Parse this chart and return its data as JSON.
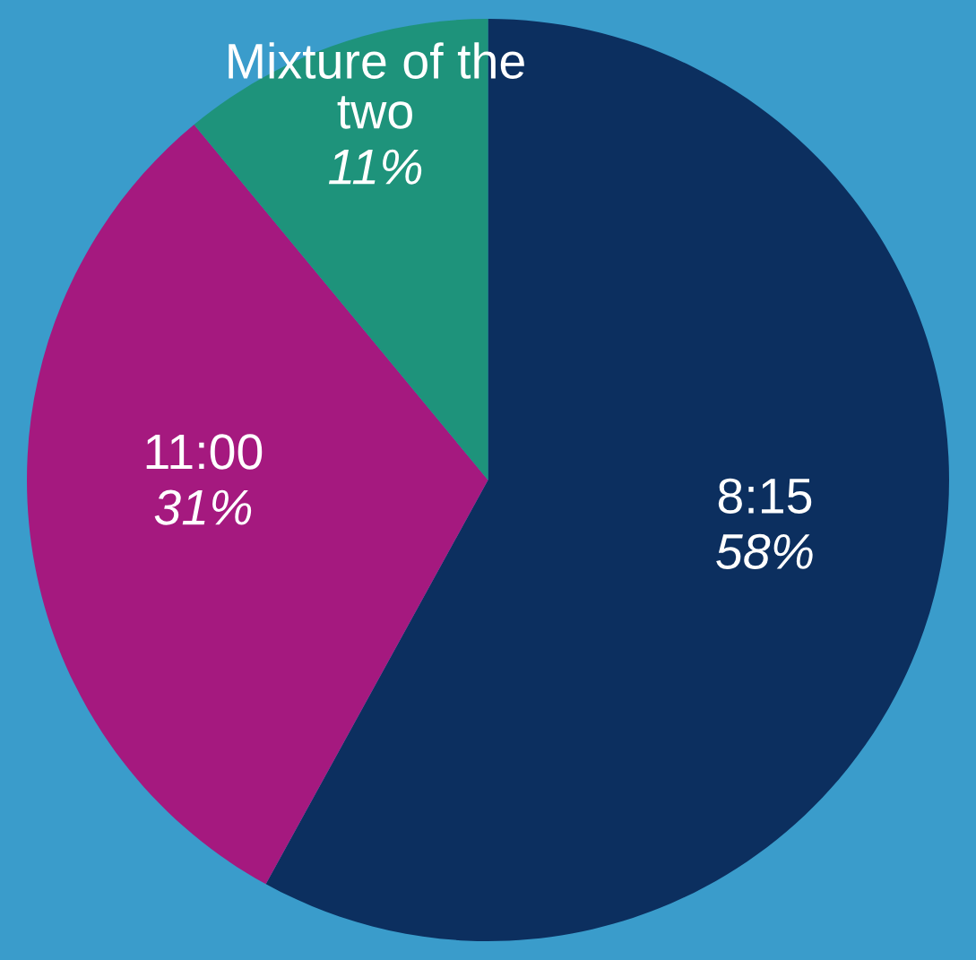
{
  "chart_data": {
    "type": "pie",
    "categories": [
      "8:15",
      "11:00",
      "Mixture of the two"
    ],
    "values": [
      58,
      31,
      11
    ],
    "value_labels": [
      "58%",
      "31%",
      "11%"
    ],
    "colors": [
      "#0c2f5f",
      "#a5197f",
      "#1e937b"
    ],
    "legend": false
  }
}
